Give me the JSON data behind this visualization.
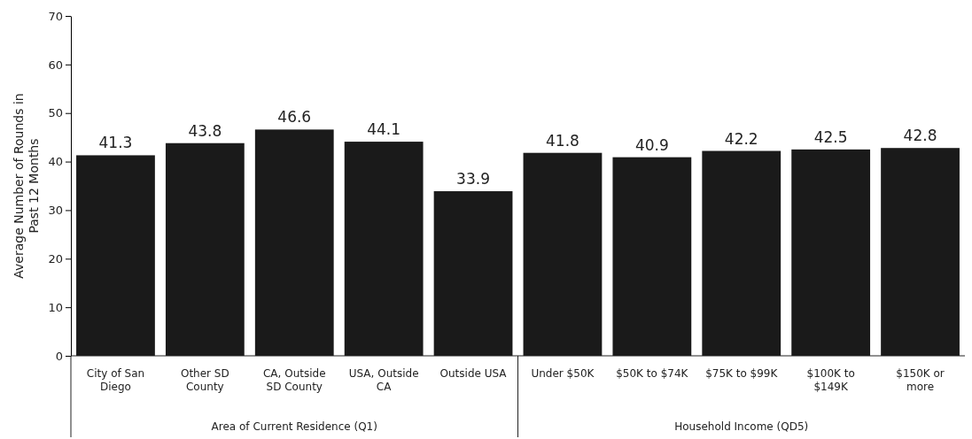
{
  "chart_data": {
    "type": "bar",
    "ylabel": "Average Number of Rounds in Past 12 Months",
    "categories": [
      "City of San Diego",
      "Other SD County",
      "CA, Outside SD County",
      "USA, Outside CA",
      "Outside USA",
      "Under $50K",
      "$50K to $74K",
      "$75K to $99K",
      "$100K to $149K",
      "$150K or more"
    ],
    "values": [
      41.3,
      43.8,
      46.6,
      44.1,
      33.9,
      41.8,
      40.9,
      42.2,
      42.5,
      42.8
    ],
    "color": "#1a1a1a",
    "ylim": [
      0,
      70
    ],
    "yticks": [
      0,
      10,
      20,
      30,
      40,
      50,
      60,
      70
    ],
    "grid": false,
    "data_labels": true,
    "annotations": [
      "Area of Current Residence (Q1)",
      "Household Income (QD5)"
    ]
  }
}
